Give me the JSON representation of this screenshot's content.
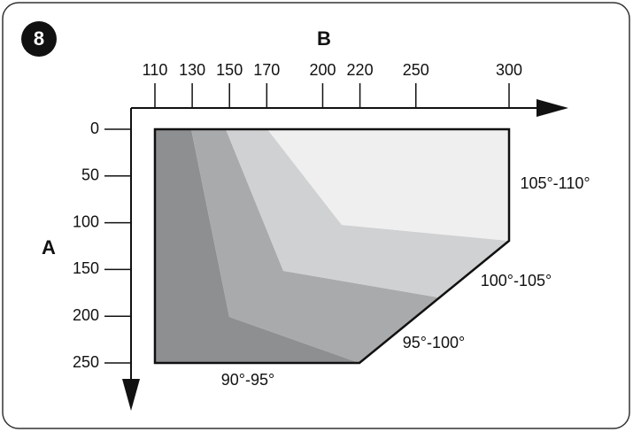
{
  "figure": {
    "number": "8",
    "x_axis_label": "B",
    "y_axis_label": "A",
    "x_ticks": [
      110,
      130,
      150,
      170,
      200,
      220,
      250,
      300
    ],
    "y_ticks": [
      0,
      50,
      100,
      150,
      200,
      250
    ],
    "regions": [
      {
        "label": "90°-95°"
      },
      {
        "label": "95°-100°"
      },
      {
        "label": "100°-105°"
      },
      {
        "label": "105°-110°"
      }
    ]
  }
}
